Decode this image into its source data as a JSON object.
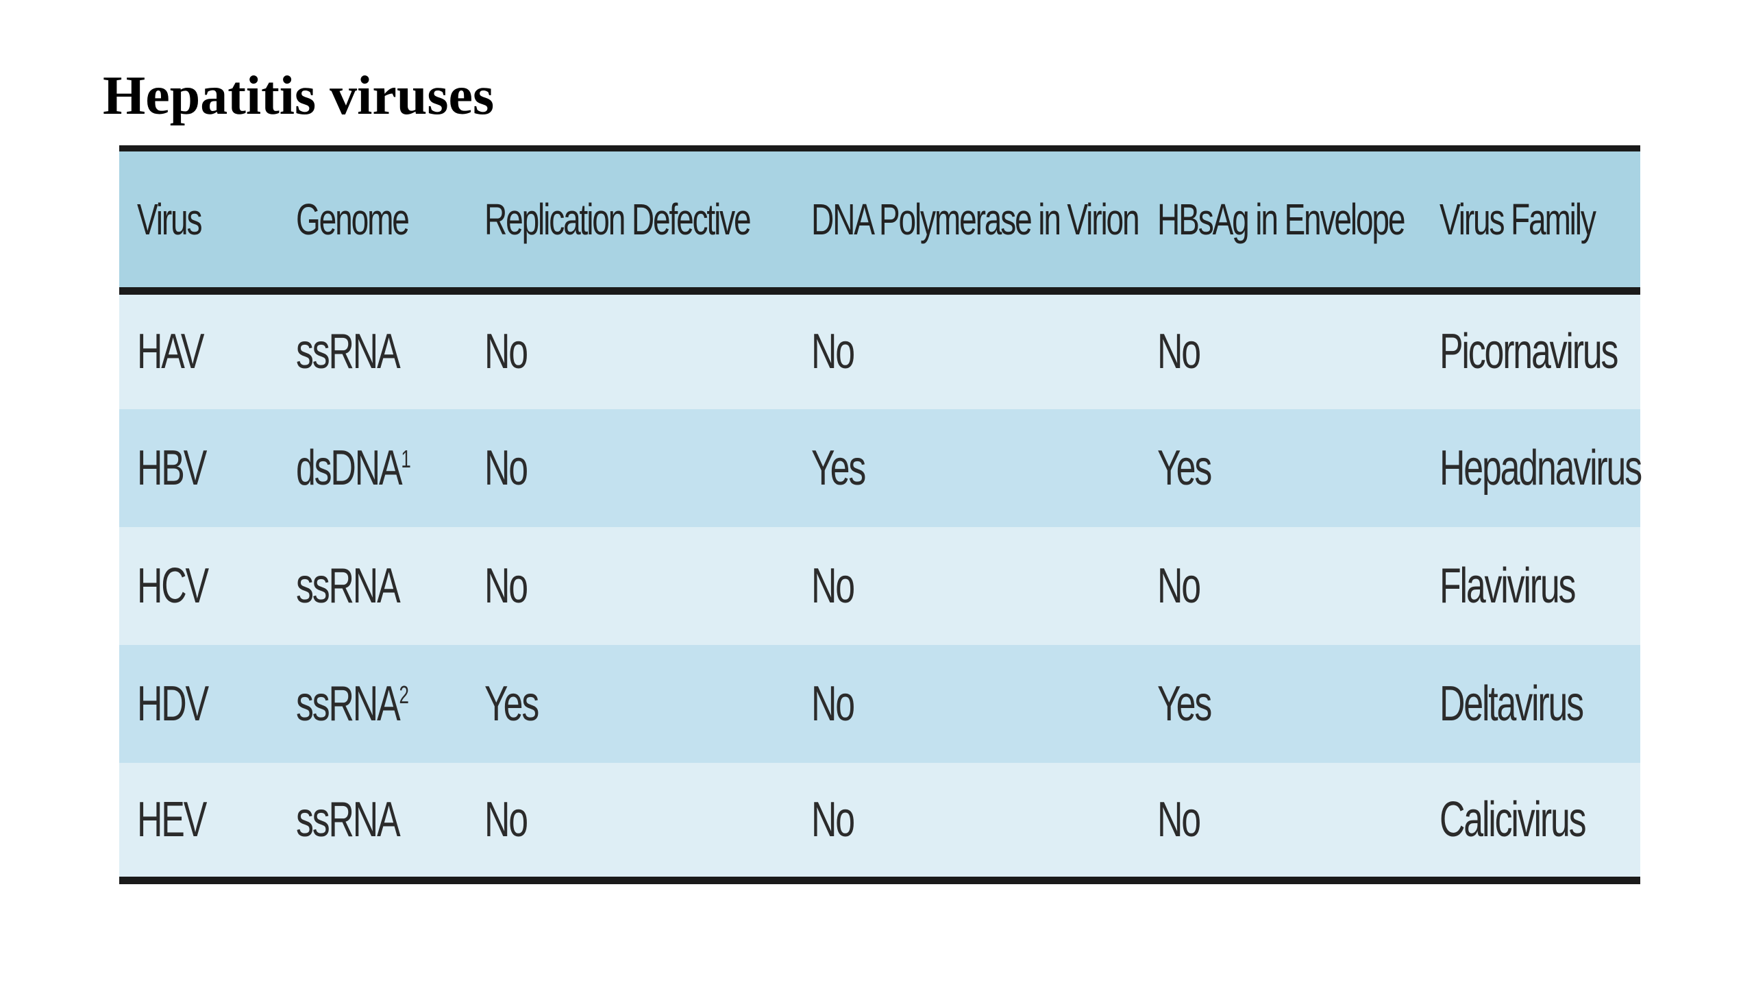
{
  "title": "Hepatitis viruses",
  "table": {
    "headers": [
      "Virus",
      "Genome",
      "Replication Defective",
      "DNA Polymerase in Virion",
      "HBsAg in Envelope",
      "Virus Family"
    ],
    "rows": [
      {
        "virus": "HAV",
        "genome": "ssRNA",
        "genome_note": "",
        "replication_defective": "No",
        "dna_polymerase": "No",
        "hbsag": "No",
        "family": "Picornavirus"
      },
      {
        "virus": "HBV",
        "genome": "dsDNA",
        "genome_note": "1",
        "replication_defective": "No",
        "dna_polymerase": "Yes",
        "hbsag": "Yes",
        "family": "Hepadnavirus"
      },
      {
        "virus": "HCV",
        "genome": "ssRNA",
        "genome_note": "",
        "replication_defective": "No",
        "dna_polymerase": "No",
        "hbsag": "No",
        "family": "Flavivirus"
      },
      {
        "virus": "HDV",
        "genome": "ssRNA",
        "genome_note": "2",
        "replication_defective": "Yes",
        "dna_polymerase": "No",
        "hbsag": "Yes",
        "family": "Deltavirus"
      },
      {
        "virus": "HEV",
        "genome": "ssRNA",
        "genome_note": "",
        "replication_defective": "No",
        "dna_polymerase": "No",
        "hbsag": "No",
        "family": "Calicivirus"
      }
    ]
  },
  "colors": {
    "header_bg": "#a9d3e3",
    "row_light": "#deeef5",
    "row_dark": "#c3e1ef",
    "rule": "#1a1a1a"
  }
}
